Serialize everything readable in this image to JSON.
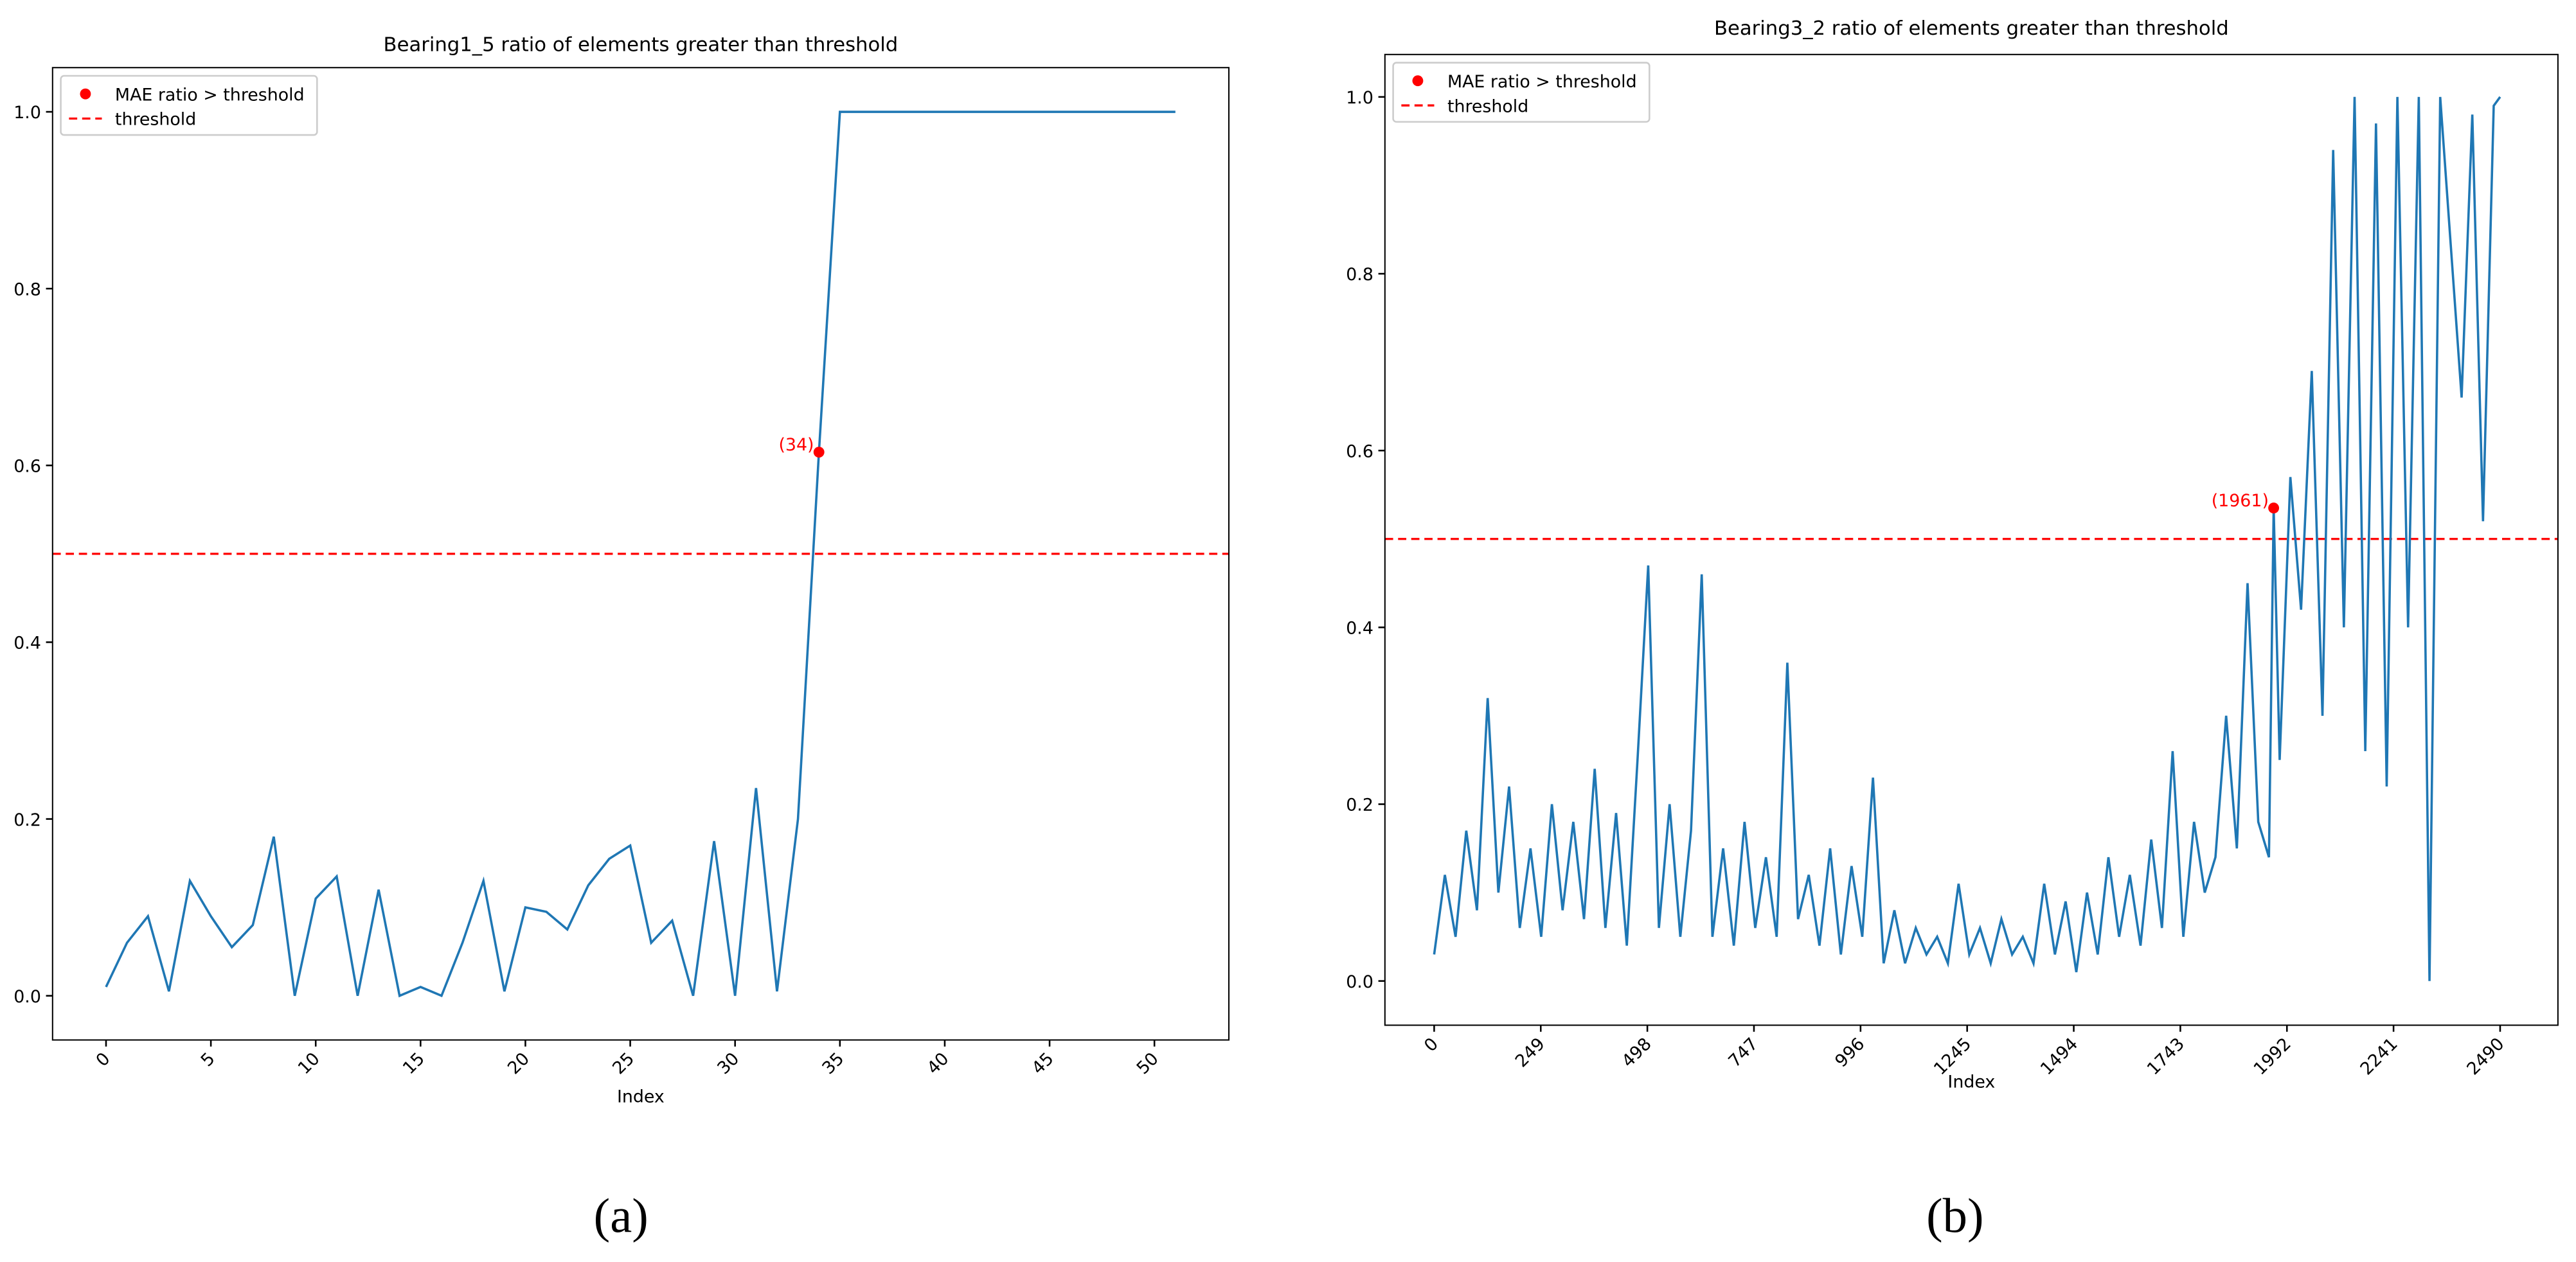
{
  "chart_data": [
    {
      "type": "line",
      "title": "Bearing1_5 ratio of elements greater than threshold",
      "xlabel": "Index",
      "caption": "(a)",
      "xlim": [
        -2.55,
        53.55
      ],
      "ylim": [
        -0.05,
        1.05
      ],
      "xticks": [
        0,
        5,
        10,
        15,
        20,
        25,
        30,
        35,
        40,
        45,
        50
      ],
      "yticks": [
        {
          "value": 0,
          "label": "0.0"
        },
        {
          "value": 0.2,
          "label": "0.2"
        },
        {
          "value": 0.4,
          "label": "0.4"
        },
        {
          "value": 0.6,
          "label": "0.6"
        },
        {
          "value": 0.8,
          "label": "0.8"
        },
        {
          "value": 1,
          "label": "1.0"
        }
      ],
      "legend": "upper left",
      "series": [
        {
          "color": "#1f77b4",
          "x": [
            0,
            1,
            2,
            3,
            4,
            5,
            6,
            7,
            8,
            9,
            10,
            11,
            12,
            13,
            14,
            15,
            16,
            17,
            18,
            19,
            20,
            21,
            22,
            23,
            24,
            25,
            26,
            27,
            28,
            29,
            30,
            31,
            32,
            33,
            34,
            35,
            36,
            37,
            38,
            39,
            40,
            41,
            42,
            43,
            44,
            45,
            46,
            47,
            48,
            49,
            50,
            51
          ],
          "values": [
            0.01,
            0.06,
            0.09,
            0.005,
            0.13,
            0.09,
            0.055,
            0.08,
            0.18,
            0.0,
            0.11,
            0.135,
            0.0,
            0.12,
            0.0,
            0.01,
            0.0,
            0.06,
            0.13,
            0.005,
            0.1,
            0.095,
            0.075,
            0.125,
            0.155,
            0.17,
            0.06,
            0.085,
            0.0,
            0.175,
            0.0,
            0.235,
            0.005,
            0.2,
            0.615,
            1,
            1,
            1,
            1,
            1,
            1,
            1,
            1,
            1,
            1,
            1,
            1,
            1,
            1,
            1,
            1,
            1
          ]
        },
        {
          "type": "scatter",
          "name": "MAE ratio > threshold",
          "color": "red",
          "x": [
            34
          ],
          "values": [
            0.615
          ]
        }
      ],
      "threshold": {
        "name": "threshold",
        "value": 0.5,
        "color": "red"
      },
      "annotations": [
        {
          "text": "(34)",
          "x": 34,
          "y": 0.615,
          "color": "red"
        }
      ]
    },
    {
      "type": "line",
      "title": "Bearing3_2 ratio of elements greater than threshold",
      "xlabel": "Index",
      "caption": "(b)",
      "xlim": [
        -115,
        2625
      ],
      "ylim": [
        -0.05,
        1.048
      ],
      "xticks": [
        0,
        249,
        498,
        747,
        996,
        1245,
        1494,
        1743,
        1992,
        2241,
        2490
      ],
      "yticks": [
        {
          "value": 0,
          "label": "0.0"
        },
        {
          "value": 0.2,
          "label": "0.2"
        },
        {
          "value": 0.4,
          "label": "0.4"
        },
        {
          "value": 0.6,
          "label": "0.6"
        },
        {
          "value": 0.8,
          "label": "0.8"
        },
        {
          "value": 1,
          "label": "1.0"
        }
      ],
      "legend": "upper left",
      "series": [
        {
          "color": "#1f77b4",
          "x": [
            0,
            25,
            50,
            75,
            100,
            125,
            150,
            175,
            200,
            225,
            250,
            275,
            300,
            325,
            350,
            375,
            400,
            425,
            450,
            475,
            500,
            525,
            550,
            575,
            600,
            625,
            650,
            675,
            700,
            725,
            750,
            775,
            800,
            825,
            850,
            875,
            900,
            925,
            950,
            975,
            1000,
            1025,
            1050,
            1075,
            1100,
            1125,
            1150,
            1175,
            1200,
            1225,
            1250,
            1275,
            1300,
            1325,
            1350,
            1375,
            1400,
            1425,
            1450,
            1475,
            1500,
            1525,
            1550,
            1575,
            1600,
            1625,
            1650,
            1675,
            1700,
            1725,
            1750,
            1775,
            1800,
            1825,
            1850,
            1875,
            1900,
            1925,
            1950,
            1961,
            1975,
            2000,
            2025,
            2050,
            2075,
            2100,
            2125,
            2150,
            2175,
            2200,
            2225,
            2250,
            2275,
            2300,
            2325,
            2350,
            2400,
            2425,
            2450,
            2475,
            2490
          ],
          "values": [
            0.03,
            0.12,
            0.05,
            0.17,
            0.08,
            0.32,
            0.1,
            0.22,
            0.06,
            0.15,
            0.05,
            0.2,
            0.08,
            0.18,
            0.07,
            0.24,
            0.06,
            0.19,
            0.04,
            0.25,
            0.47,
            0.06,
            0.2,
            0.05,
            0.17,
            0.46,
            0.05,
            0.15,
            0.04,
            0.18,
            0.06,
            0.14,
            0.05,
            0.36,
            0.07,
            0.12,
            0.04,
            0.15,
            0.03,
            0.13,
            0.05,
            0.23,
            0.02,
            0.08,
            0.02,
            0.06,
            0.03,
            0.05,
            0.02,
            0.11,
            0.03,
            0.06,
            0.02,
            0.07,
            0.03,
            0.05,
            0.02,
            0.11,
            0.03,
            0.09,
            0.01,
            0.1,
            0.03,
            0.14,
            0.05,
            0.12,
            0.04,
            0.16,
            0.06,
            0.26,
            0.05,
            0.18,
            0.1,
            0.14,
            0.3,
            0.15,
            0.45,
            0.18,
            0.14,
            0.535,
            0.25,
            0.57,
            0.42,
            0.69,
            0.3,
            0.94,
            0.4,
            1,
            0.26,
            0.97,
            0.22,
            1,
            0.4,
            1,
            0.0,
            1,
            0.66,
            0.98,
            0.52,
            0.99,
            1
          ]
        },
        {
          "type": "scatter",
          "name": "MAE ratio > threshold",
          "color": "red",
          "x": [
            1961
          ],
          "values": [
            0.535
          ]
        }
      ],
      "threshold": {
        "name": "threshold",
        "value": 0.5,
        "color": "red"
      },
      "annotations": [
        {
          "text": "(1961)",
          "x": 1961,
          "y": 0.535,
          "color": "red"
        }
      ]
    }
  ]
}
